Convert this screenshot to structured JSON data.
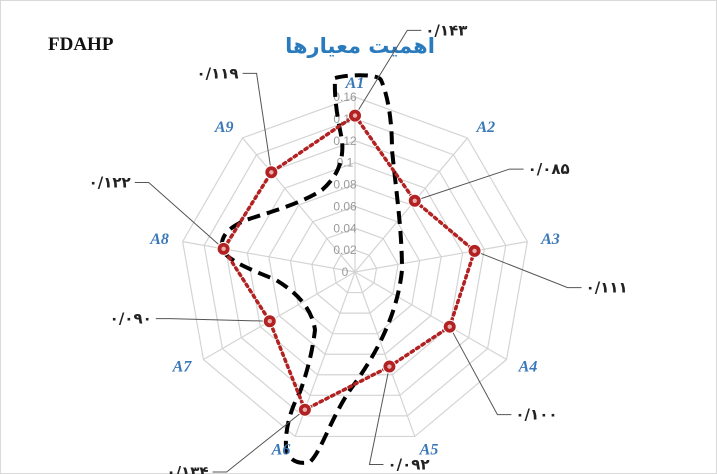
{
  "header": {
    "left_label": "FDAHP"
  },
  "chart_data": {
    "type": "radar",
    "title": "اهمیت معیارها",
    "categories": [
      "A1",
      "A2",
      "A3",
      "A4",
      "A5",
      "A6",
      "A7",
      "A8",
      "A9"
    ],
    "series": [
      {
        "values": [
          0.143,
          0.085,
          0.111,
          0.1,
          0.092,
          0.134,
          0.09,
          0.122,
          0.119
        ]
      }
    ],
    "value_labels": [
      "۰/۱۴۳",
      "۰/۰۸۵",
      "۰/۱۱۱",
      "۰/۱۰۰",
      "۰/۰۹۲",
      "۰/۱۳۴",
      "۰/۰۹۰",
      "۰/۱۲۲",
      "۰/۱۱۹"
    ],
    "ticks": [
      "0",
      "0.02",
      "0.04",
      "0.06",
      "0.08",
      "0.1",
      "0.12",
      "0.14",
      "0.16"
    ],
    "rlim": [
      0,
      0.16
    ],
    "grid": true,
    "series_color": "#b22222",
    "grid_color": "#d4d4d4",
    "axis_label_color": "#3b78b8",
    "highlight_outline_color": "#000000"
  }
}
